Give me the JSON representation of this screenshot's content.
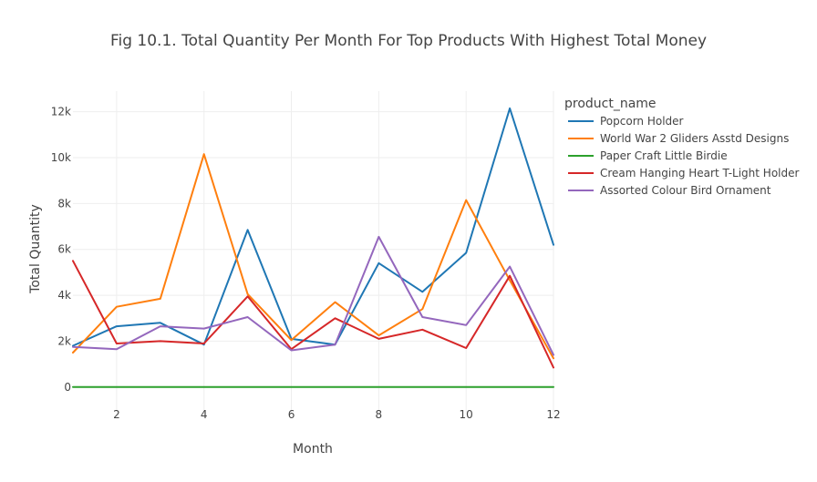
{
  "chart_data": {
    "type": "line",
    "title": "Fig 10.1. Total Quantity Per Month For Top Products With Highest Total Money",
    "xlabel": "Month",
    "ylabel": "Total Quantity",
    "xlim": [
      1,
      12
    ],
    "ylim": [
      -1200,
      12900
    ],
    "x_ticks": [
      2,
      4,
      6,
      8,
      10,
      12
    ],
    "x_tick_labels": [
      "2",
      "4",
      "6",
      "8",
      "10",
      "12"
    ],
    "y_ticks": [
      0,
      2000,
      4000,
      6000,
      8000,
      10000,
      12000
    ],
    "y_tick_labels": [
      "0",
      "2k",
      "4k",
      "6k",
      "8k",
      "10k",
      "12k"
    ],
    "grid": true,
    "legend_title": "product_name",
    "legend_position": "right",
    "x": [
      1,
      2,
      3,
      4,
      5,
      6,
      7,
      8,
      9,
      10,
      11,
      12
    ],
    "series": [
      {
        "name": "Popcorn Holder",
        "color": "#1f77b4",
        "values": [
          1800,
          2650,
          2800,
          1850,
          6850,
          2100,
          1850,
          5400,
          4150,
          5850,
          12150,
          6200
        ]
      },
      {
        "name": "World War 2 Gliders Asstd Designs",
        "color": "#ff7f0e",
        "values": [
          1500,
          3500,
          3850,
          10150,
          4050,
          2050,
          3700,
          2250,
          3400,
          8150,
          4650,
          1250
        ]
      },
      {
        "name": "Paper Craft Little Birdie",
        "color": "#2ca02c",
        "values": [
          0,
          0,
          0,
          0,
          0,
          0,
          0,
          0,
          0,
          0,
          0,
          0
        ]
      },
      {
        "name": "Cream Hanging Heart T-Light Holder",
        "color": "#d62728",
        "values": [
          5500,
          1900,
          2000,
          1900,
          3950,
          1650,
          3000,
          2100,
          2500,
          1700,
          4850,
          850
        ]
      },
      {
        "name": "Assorted Colour Bird Ornament",
        "color": "#9467bd",
        "values": [
          1750,
          1650,
          2650,
          2550,
          3050,
          1600,
          1850,
          6550,
          3050,
          2700,
          5250,
          1400
        ]
      }
    ]
  }
}
